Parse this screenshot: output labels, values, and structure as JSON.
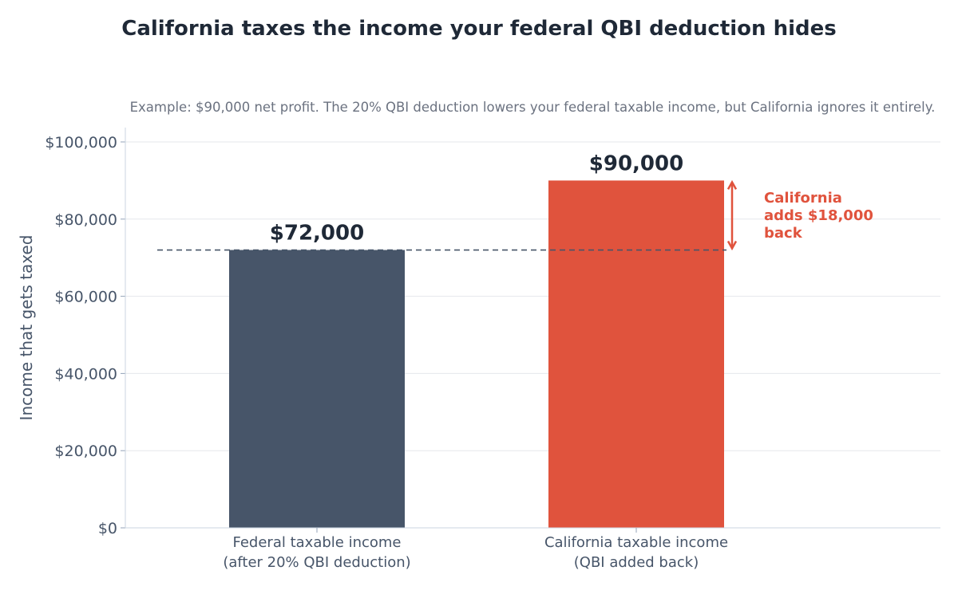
{
  "chart_data": {
    "type": "bar",
    "title": "California taxes the income your federal QBI deduction hides",
    "subtitle": "Example: $90,000 net profit. The 20% QBI deduction lowers your federal taxable income, but California ignores it entirely.",
    "xlabel": "",
    "ylabel": "Income that gets taxed",
    "ylim": [
      0,
      104000
    ],
    "yticks": [
      0,
      20000,
      40000,
      60000,
      80000,
      100000
    ],
    "ytick_labels": [
      "$0",
      "$20,000",
      "$40,000",
      "$60,000",
      "$80,000",
      "$100,000"
    ],
    "grid": true,
    "categories": [
      [
        "Federal taxable income",
        "(after 20% QBI deduction)"
      ],
      [
        "California taxable income",
        "(QBI added back)"
      ]
    ],
    "values": [
      72000,
      90000
    ],
    "value_labels": [
      "$72,000",
      "$90,000"
    ],
    "bar_colors": [
      "#475569",
      "#e0533d"
    ],
    "reference_line": {
      "value": 72000,
      "style": "dashed"
    },
    "annotation": {
      "lines": [
        "California",
        "adds $18,000",
        "back"
      ],
      "from": 72000,
      "to": 90000,
      "color": "#e0533d"
    }
  }
}
